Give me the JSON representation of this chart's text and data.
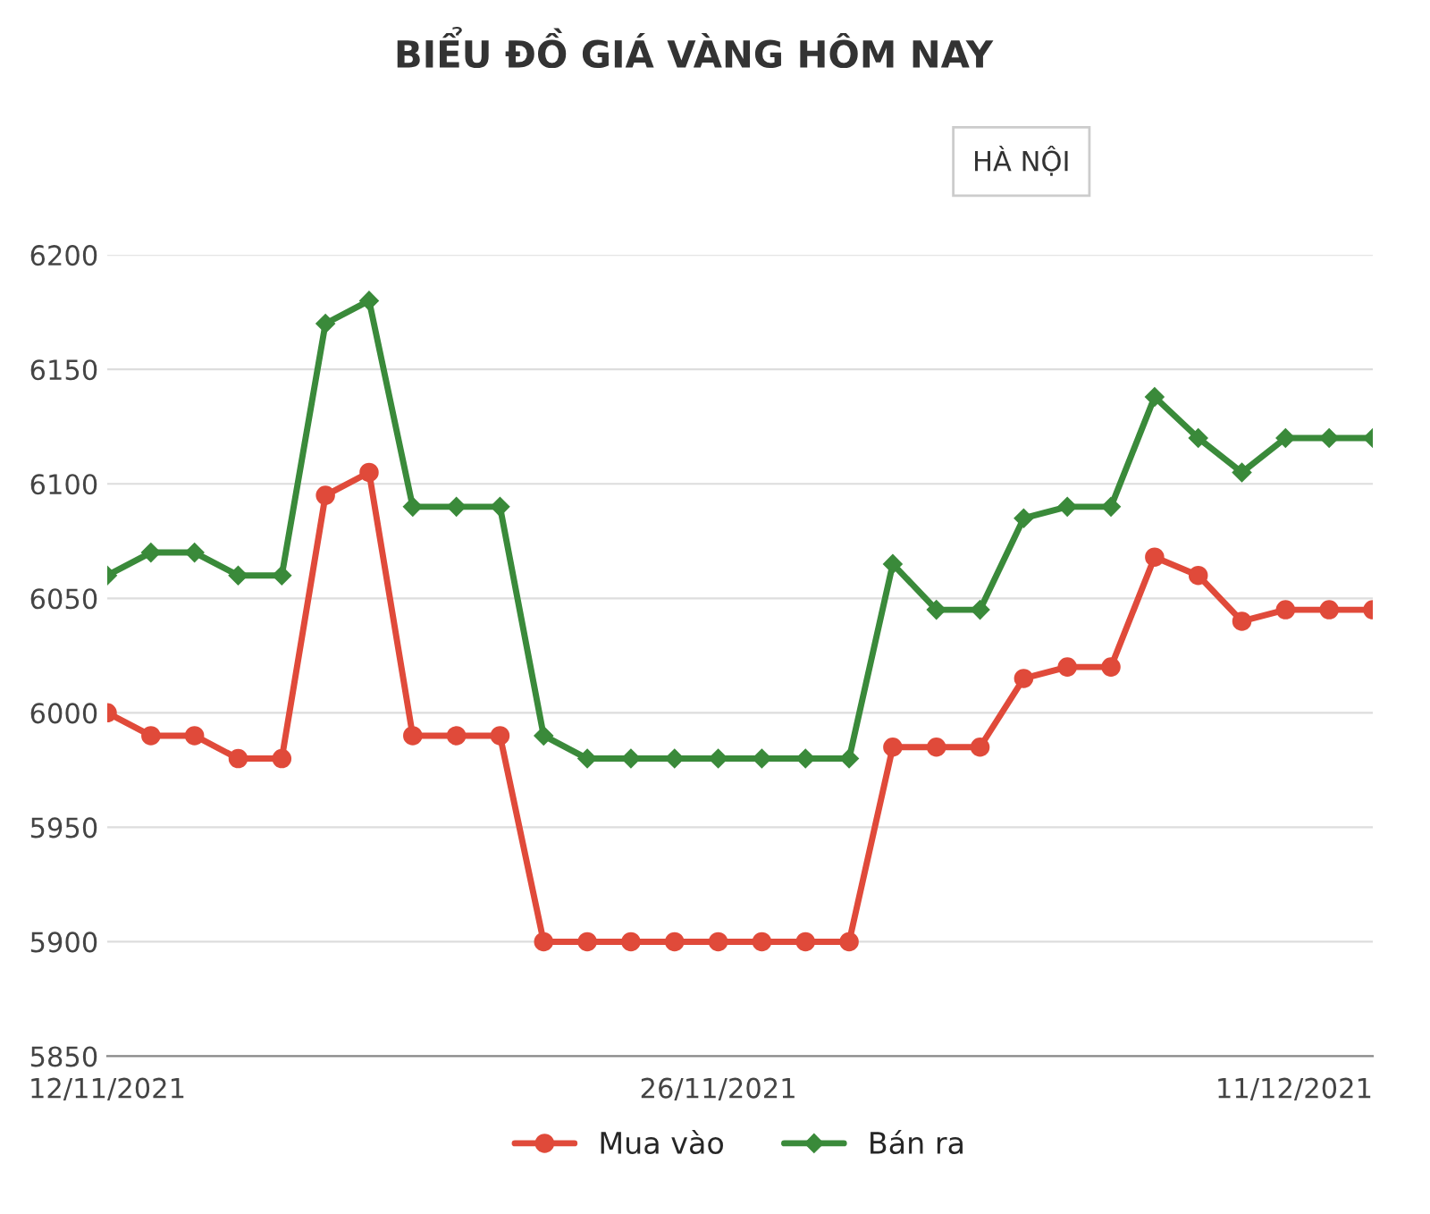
{
  "chart_data": {
    "type": "line",
    "title": "BIỂU ĐỒ GIÁ VÀNG HÔM NAY",
    "annotations": [
      "HÀ NỘI"
    ],
    "x": [
      "2021-11-12",
      "2021-11-13",
      "2021-11-14",
      "2021-11-15",
      "2021-11-16",
      "2021-11-17",
      "2021-11-18",
      "2021-11-19",
      "2021-11-20",
      "2021-11-21",
      "2021-11-22",
      "2021-11-23",
      "2021-11-24",
      "2021-11-25",
      "2021-11-26",
      "2021-11-27",
      "2021-11-28",
      "2021-11-29",
      "2021-11-30",
      "2021-12-01",
      "2021-12-02",
      "2021-12-03",
      "2021-12-04",
      "2021-12-05",
      "2021-12-06",
      "2021-12-07",
      "2021-12-08",
      "2021-12-09",
      "2021-12-10",
      "2021-12-11"
    ],
    "series": [
      {
        "name": "Mua vào",
        "color": "#e04a3a",
        "marker": "circle",
        "values": [
          6000,
          5990,
          5990,
          5980,
          5980,
          6095,
          6105,
          5990,
          5990,
          5990,
          5900,
          5900,
          5900,
          5900,
          5900,
          5900,
          5900,
          5900,
          5985,
          5985,
          5985,
          6015,
          6020,
          6020,
          6068,
          6060,
          6040,
          6045,
          6045,
          6045
        ]
      },
      {
        "name": "Bán ra",
        "color": "#3a8a3a",
        "marker": "diamond",
        "values": [
          6060,
          6070,
          6070,
          6060,
          6060,
          6170,
          6180,
          6090,
          6090,
          6090,
          5990,
          5980,
          5980,
          5980,
          5980,
          5980,
          5980,
          5980,
          6065,
          6045,
          6045,
          6085,
          6090,
          6090,
          6138,
          6120,
          6105,
          6120,
          6120,
          6120
        ]
      }
    ],
    "xlim": [
      "2021-11-12",
      "2021-12-11"
    ],
    "xticks": [
      {
        "value": "2021-11-12",
        "label": "12/11/2021"
      },
      {
        "value": "2021-11-26",
        "label": "26/11/2021"
      },
      {
        "value": "2021-12-11",
        "label": "11/12/2021"
      }
    ],
    "ylim": [
      5850,
      6200
    ],
    "yticks": [
      5850,
      5900,
      5950,
      6000,
      6050,
      6100,
      6150,
      6200
    ],
    "grid": "y",
    "legend": "bottom",
    "line_style": "solid"
  }
}
